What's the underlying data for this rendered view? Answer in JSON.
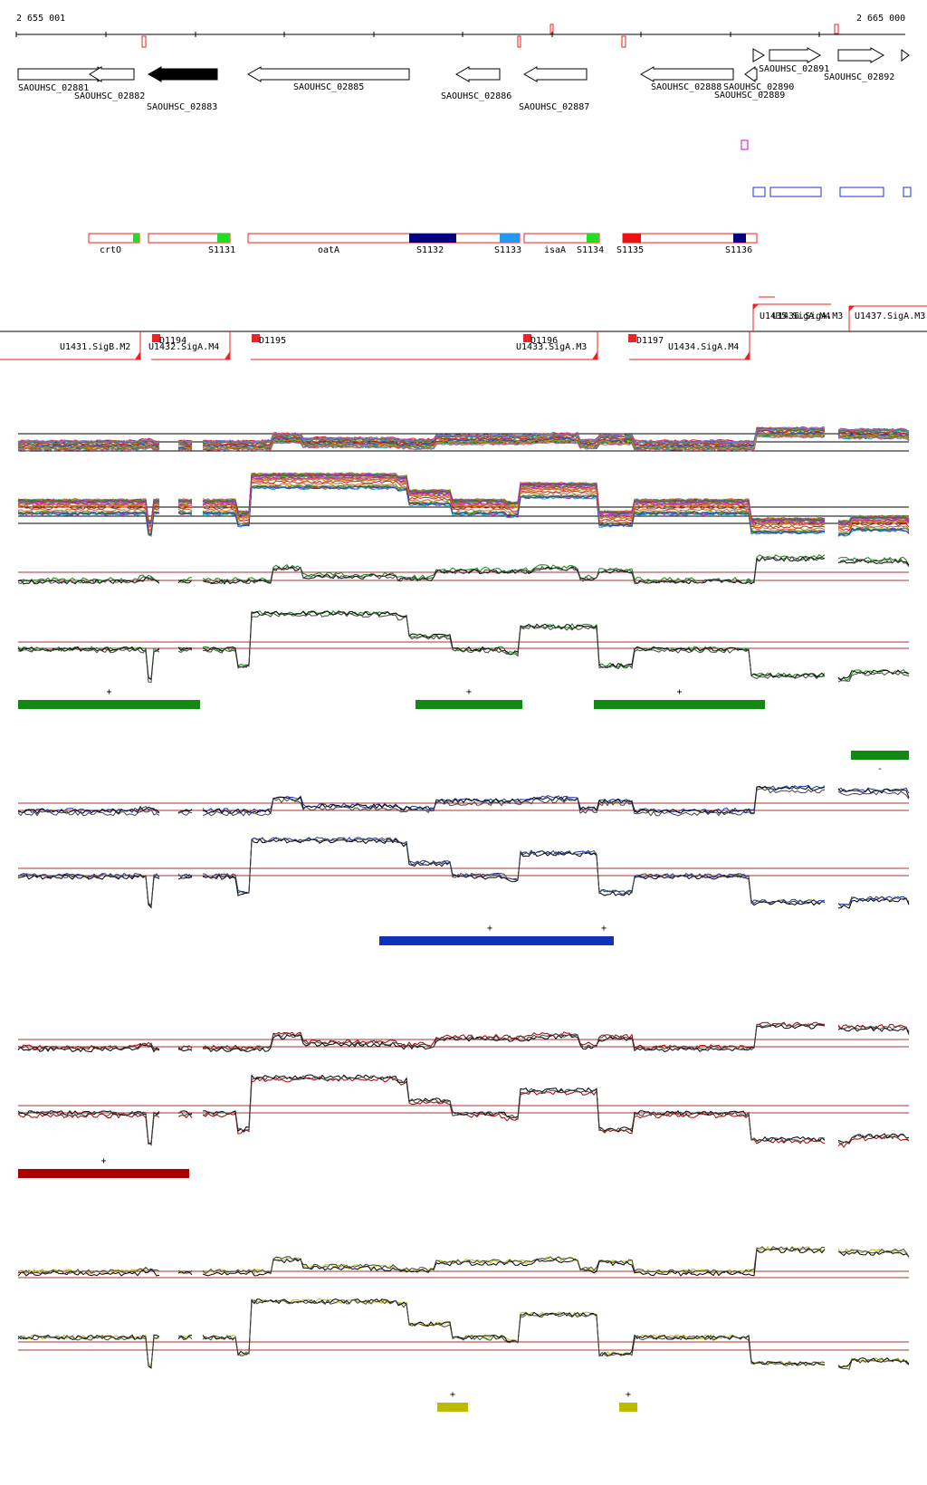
{
  "ruler": {
    "start_label": "2 655 001",
    "end_label": "2 665 000"
  },
  "genes": [
    {
      "label": "SAOUHSC_02881",
      "strand": "+",
      "filled": false
    },
    {
      "label": "SAOUHSC_02882",
      "strand": "-",
      "filled": false
    },
    {
      "label": "SAOUHSC_02883",
      "strand": "-",
      "filled": true
    },
    {
      "label": "SAOUHSC_02885",
      "strand": "-",
      "filled": false
    },
    {
      "label": "SAOUHSC_02886",
      "strand": "-",
      "filled": false
    },
    {
      "label": "SAOUHSC_02887",
      "strand": "-",
      "filled": false
    },
    {
      "label": "SAOUHSC_02888",
      "strand": "-",
      "filled": false
    },
    {
      "label": "SAOUHSC_02889",
      "strand": "-",
      "filled": false
    },
    {
      "label": "SAOUHSC_02890",
      "strand": "+",
      "filled": false
    },
    {
      "label": "SAOUHSC_02891",
      "strand": "+",
      "filled": false
    },
    {
      "label": "SAOUHSC_02892",
      "strand": "+",
      "filled": false
    }
  ],
  "segments": [
    {
      "label": "crtO"
    },
    {
      "label": "S1131"
    },
    {
      "label": "oatA"
    },
    {
      "label": "S1132"
    },
    {
      "label": "S1133"
    },
    {
      "label": "isaA"
    },
    {
      "label": "S1134"
    },
    {
      "label": "S1135"
    },
    {
      "label": "S1136"
    }
  ],
  "segment_colors": {
    "green": "#22dd22",
    "navy": "#000080",
    "sky": "#2299ee",
    "red": "#ee1111"
  },
  "transcription_units": {
    "upper": [
      {
        "label": "U1435.SigA.M4"
      },
      {
        "label": "U1436.SigA.M3"
      },
      {
        "label": "U1437.SigA.M3"
      }
    ],
    "lower": [
      {
        "label": "U1431.SigB.M2"
      },
      {
        "label": "U1432.SigA.M4"
      },
      {
        "label": "U1433.SigA.M3"
      },
      {
        "label": "U1434.SigA.M4"
      }
    ],
    "downshifts": [
      {
        "label": "D1194"
      },
      {
        "label": "D1195"
      },
      {
        "label": "D1196"
      },
      {
        "label": "D1197"
      }
    ]
  },
  "panels": [
    {
      "name": "all-conditions",
      "color": "multi",
      "bars": []
    },
    {
      "name": "green",
      "color": "#118811",
      "bars": [
        {
          "sign": "+"
        },
        {
          "sign": "+"
        },
        {
          "sign": "+"
        },
        {
          "sign": "-"
        }
      ]
    },
    {
      "name": "blue",
      "color": "#1133bb",
      "bars": [
        {
          "sign": "+"
        },
        {
          "sign": "+"
        }
      ]
    },
    {
      "name": "red",
      "color": "#aa0000",
      "bars": [
        {
          "sign": "+"
        }
      ]
    },
    {
      "name": "yellow",
      "color": "#bbbb00",
      "bars": [
        {
          "sign": "+"
        },
        {
          "sign": "+"
        }
      ]
    }
  ]
}
